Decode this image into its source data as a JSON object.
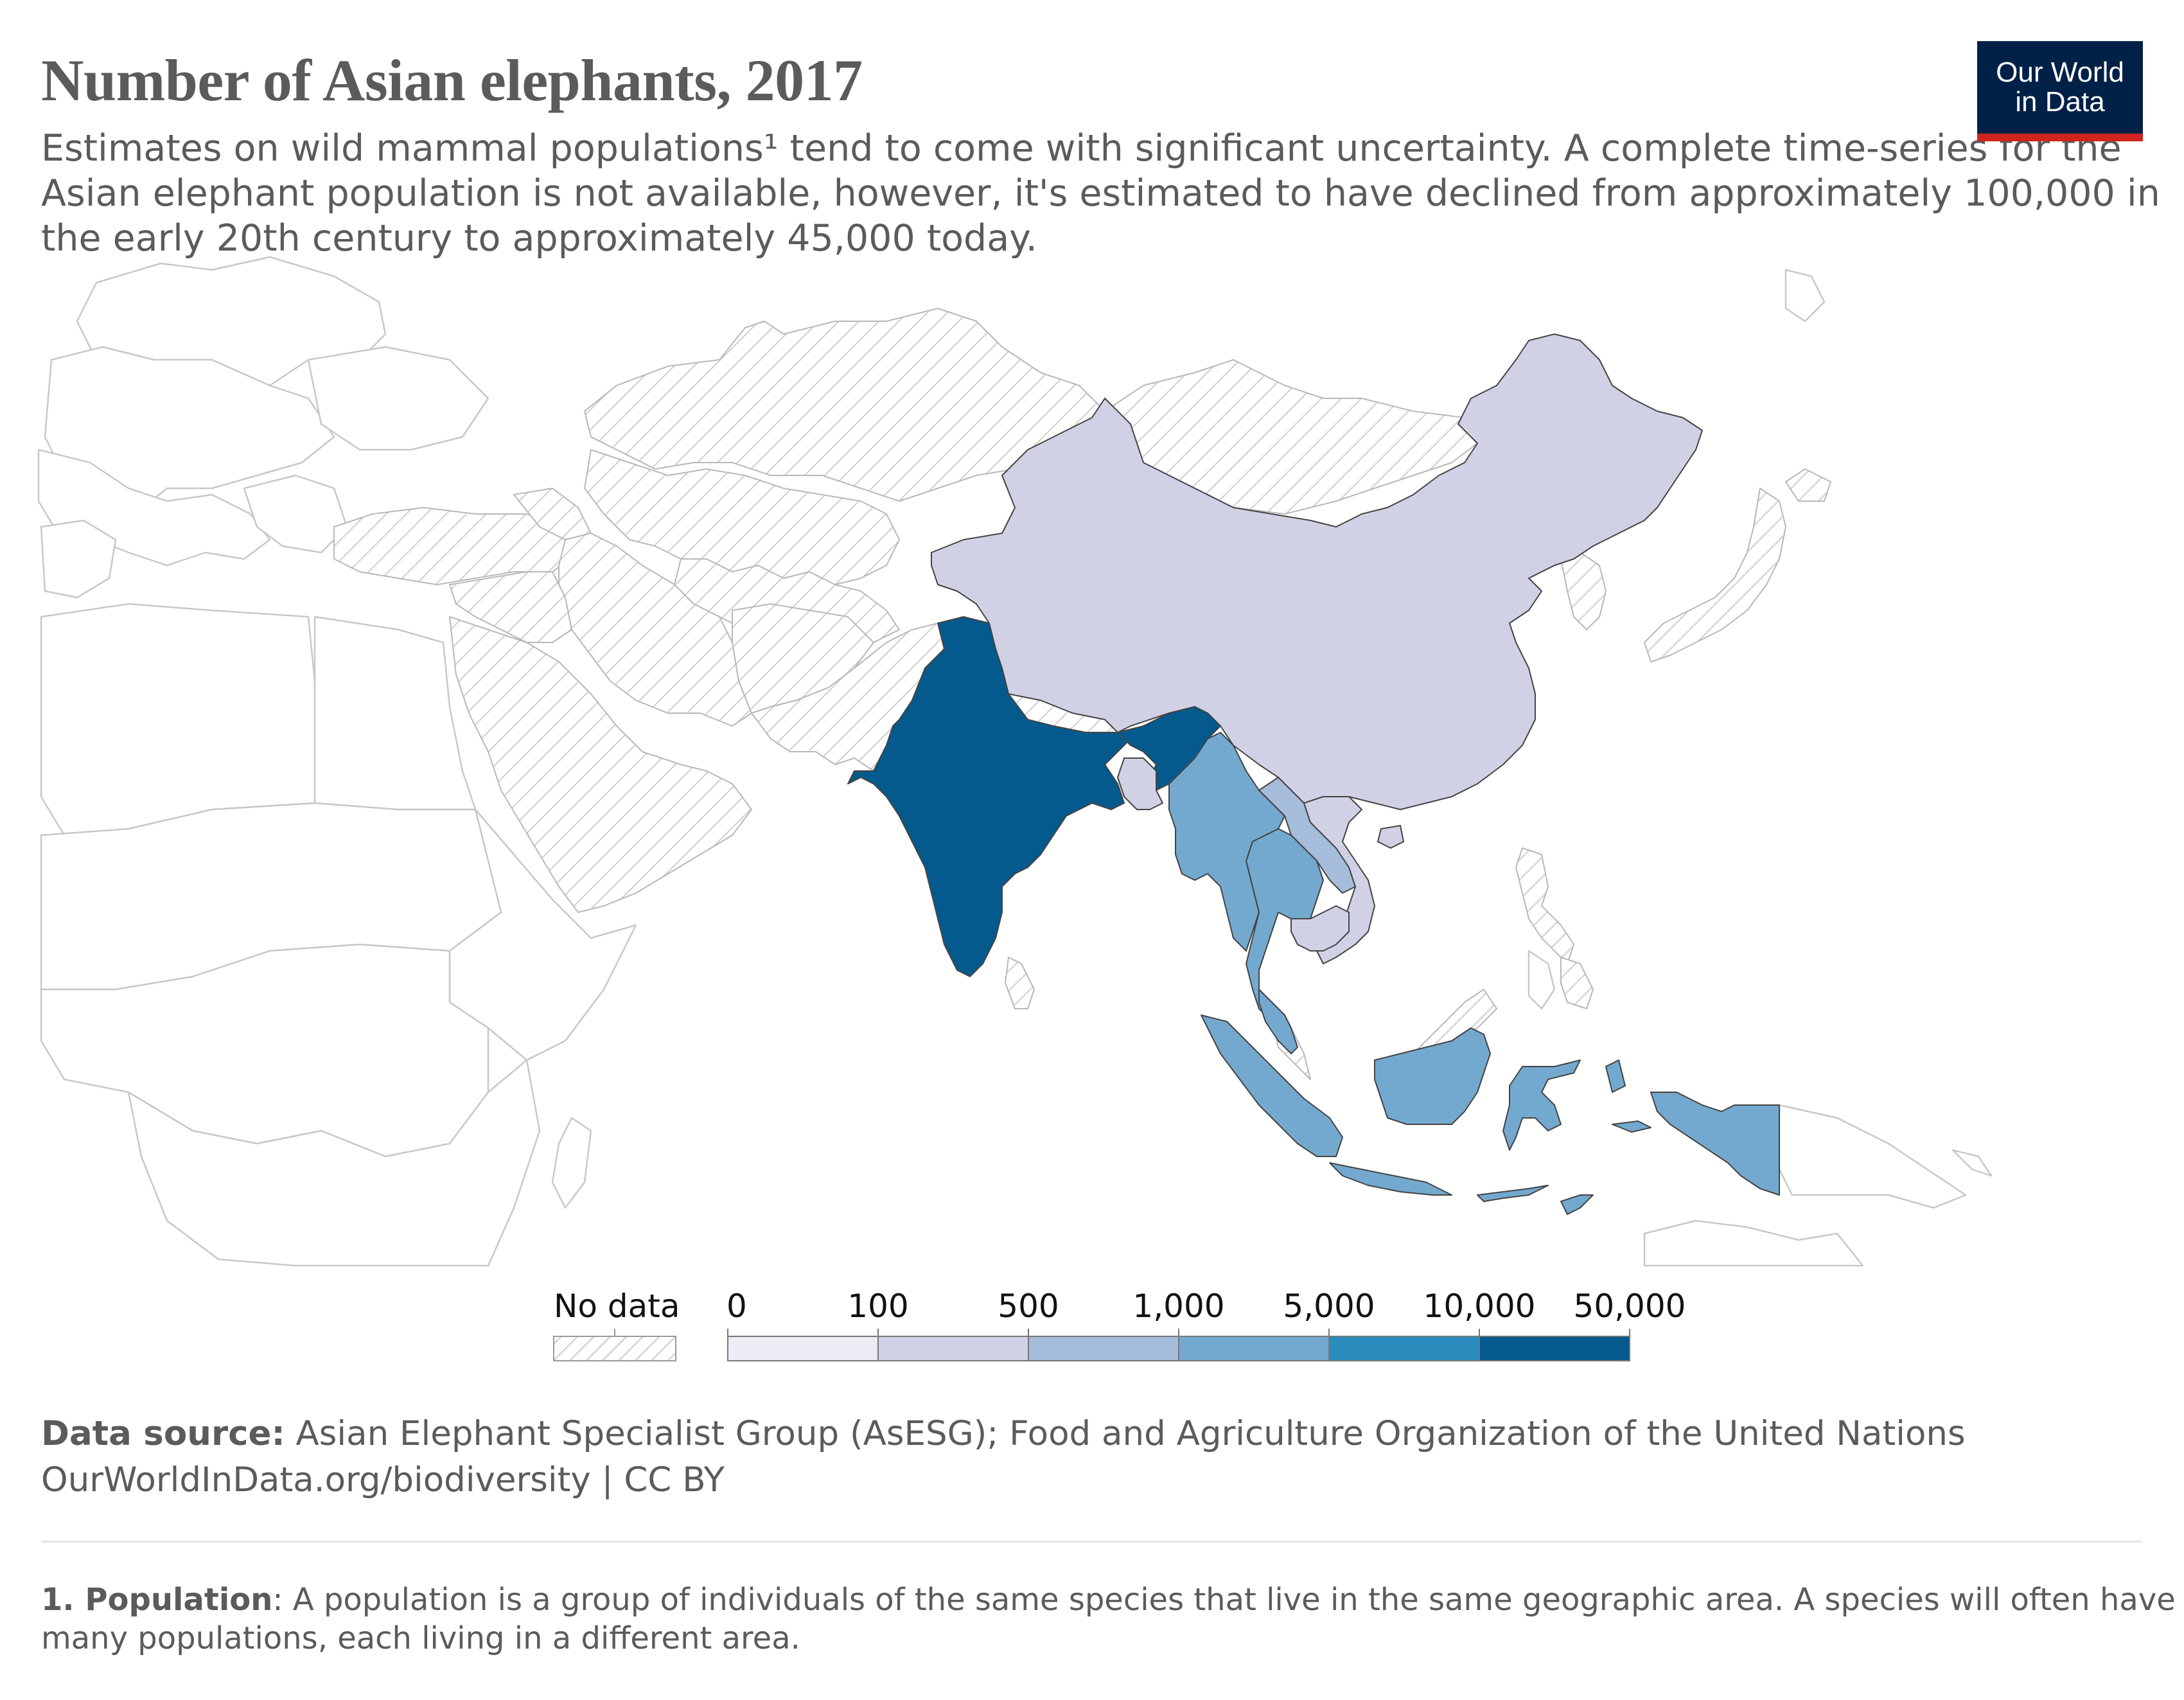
{
  "header": {
    "title": "Number of Asian elephants, 2017",
    "subtitle_lines": [
      "Estimates on wild mammal populations¹ tend to come with significant uncertainty. A complete time-series for the",
      "Asian elephant population is not available, however, it's estimated to have declined from approximately 100,000 in",
      "the early 20th century to approximately 45,000 today."
    ]
  },
  "logo": {
    "line1": "Our World",
    "line2": "in Data"
  },
  "legend": {
    "no_data_label": "No data",
    "bins": [
      "0",
      "100",
      "500",
      "1,000",
      "5,000",
      "10,000",
      "50,000"
    ],
    "colors": [
      "#edecf4",
      "#d1d1e6",
      "#a6bcdb",
      "#74a9cf",
      "#2b8cbe",
      "#045a8d"
    ],
    "no_data_pattern_color": "#cfcfcf"
  },
  "chart_data": {
    "type": "map",
    "year": 2017,
    "bins": [
      0,
      100,
      500,
      1000,
      5000,
      10000,
      50000
    ],
    "regions": [
      {
        "name": "India",
        "bin": "10,000–50,000",
        "color": "#045a8d"
      },
      {
        "name": "Bhutan",
        "bin": "10,000–50,000",
        "color": "#045a8d"
      },
      {
        "name": "Myanmar",
        "bin": "1,000–5,000",
        "color": "#74a9cf"
      },
      {
        "name": "Thailand",
        "bin": "1,000–5,000",
        "color": "#74a9cf"
      },
      {
        "name": "Malaysia",
        "bin": "1,000–5,000",
        "color": "#74a9cf"
      },
      {
        "name": "Indonesia",
        "bin": "1,000–5,000",
        "color": "#74a9cf"
      },
      {
        "name": "Laos",
        "bin": "500–1,000",
        "color": "#a6bcdb"
      },
      {
        "name": "China",
        "bin": "100–500",
        "color": "#d1d1e6"
      },
      {
        "name": "Bangladesh",
        "bin": "100–500",
        "color": "#d1d1e6"
      },
      {
        "name": "Cambodia",
        "bin": "100–500",
        "color": "#d1d1e6"
      },
      {
        "name": "Vietnam",
        "bin": "100–500",
        "color": "#d1d1e6"
      },
      {
        "name": "Nepal",
        "bin": "No data",
        "color": "pattern"
      },
      {
        "name": "Sri Lanka",
        "bin": "No data",
        "color": "pattern"
      }
    ]
  },
  "source": {
    "label": "Data source:",
    "text": " Asian Elephant Specialist Group (AsESG); Food and Agriculture Organization of the United Nations",
    "url_line": "OurWorldInData.org/biodiversity | CC BY"
  },
  "footnote": {
    "term": "1. Population",
    "text": ": A population is a group of individuals of the same species that live in the same geographic area. A species will often have",
    "line2": "many populations, each living in a different area."
  }
}
